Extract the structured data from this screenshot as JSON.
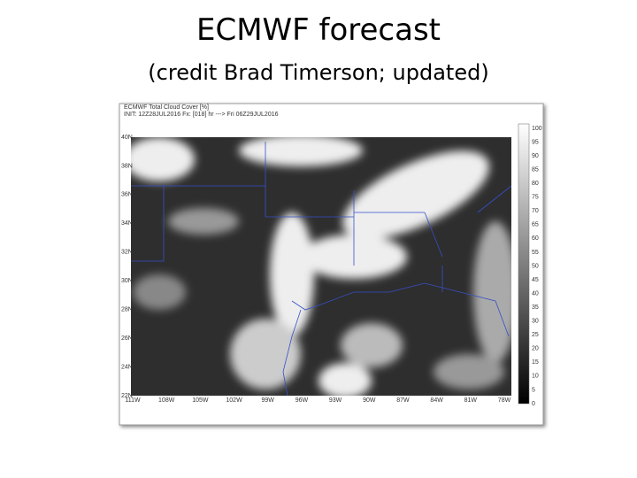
{
  "slide": {
    "title": "ECMWF forecast",
    "subtitle": "(credit Brad Timerson; updated)"
  },
  "map": {
    "header": [
      "ECMWF Total Cloud Cover [%]",
      "INIT: 12Z28JUL2016 Fx: [018] hr ---> Fri 06Z29JUL2016"
    ],
    "lat_labels": [
      "40N",
      "38N",
      "36N",
      "34N",
      "32N",
      "30N",
      "28N",
      "26N",
      "24N",
      "22N"
    ],
    "lon_labels": [
      "111W",
      "108W",
      "105W",
      "102W",
      "99W",
      "96W",
      "93W",
      "90W",
      "87W",
      "84W",
      "81W",
      "78W"
    ],
    "colorbar_ticks": [
      100,
      95,
      90,
      85,
      80,
      75,
      70,
      65,
      60,
      55,
      50,
      45,
      40,
      35,
      30,
      25,
      20,
      15,
      10,
      5,
      0
    ]
  }
}
